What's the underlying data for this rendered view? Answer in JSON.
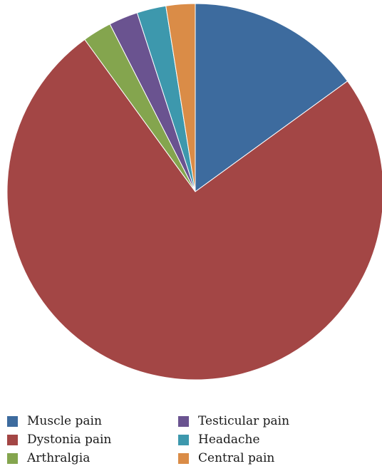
{
  "chart_data": {
    "type": "pie",
    "title": "",
    "legend_position": "bottom",
    "start_angle_deg": 0,
    "direction": "clockwise",
    "slices": [
      {
        "label": "Muscle pain",
        "value": 15,
        "color": "#3d6b9e"
      },
      {
        "label": "Dystonia pain",
        "value": 75,
        "color": "#a34645"
      },
      {
        "label": "Arthralgia",
        "value": 2.5,
        "color": "#84a54e"
      },
      {
        "label": "Testicular pain",
        "value": 2.5,
        "color": "#6a5390"
      },
      {
        "label": "Headache",
        "value": 2.5,
        "color": "#3d98ad"
      },
      {
        "label": "Central pain",
        "value": 2.5,
        "color": "#da8c47"
      }
    ],
    "legend_order": [
      "Muscle pain",
      "Dystonia pain",
      "Arthralgia",
      "Testicular pain",
      "Headache",
      "Central pain"
    ]
  }
}
